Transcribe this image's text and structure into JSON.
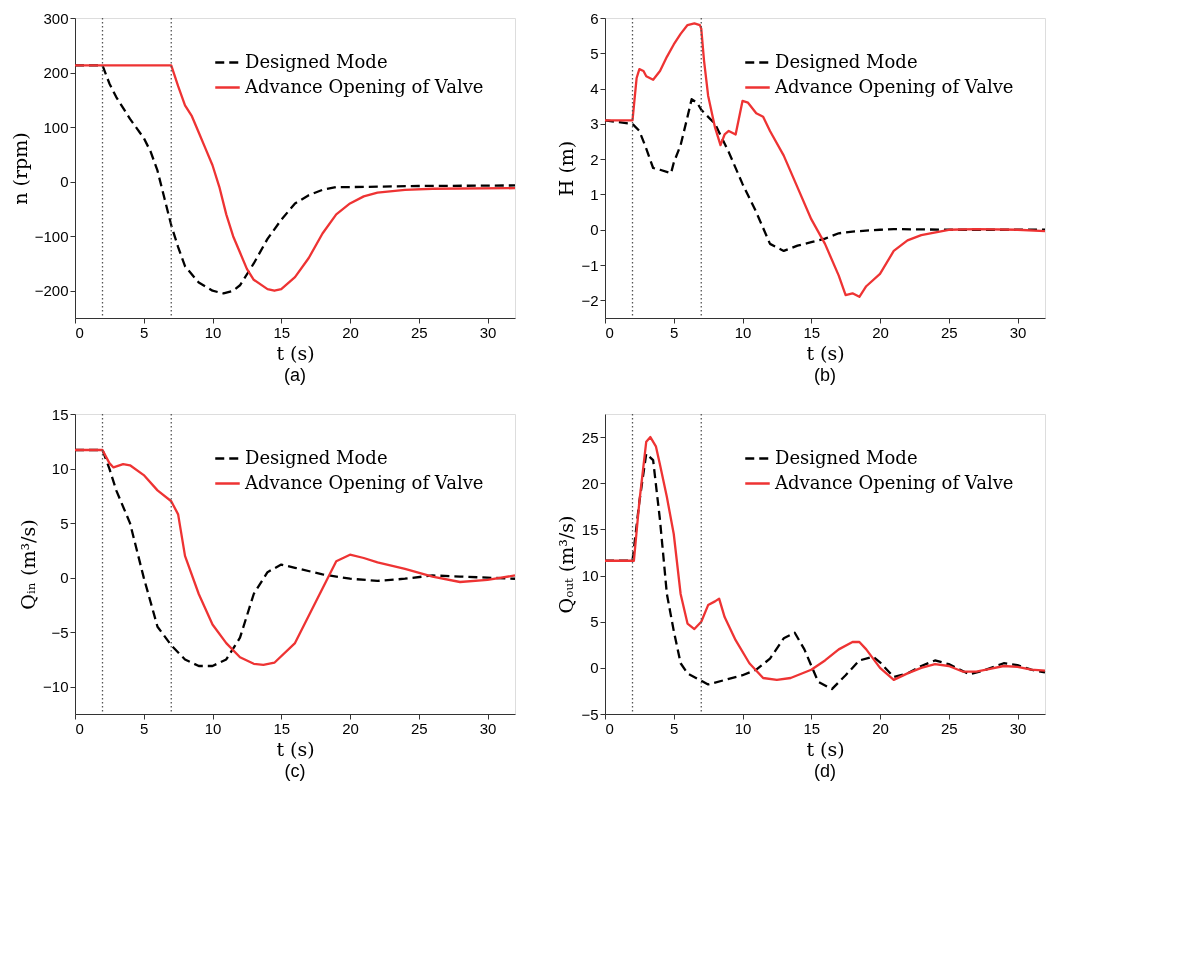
{
  "chart_data": [
    {
      "type": "line",
      "xlabel": "t (s)",
      "ylabel": "n (rpm)",
      "annotations": [
        "(a)"
      ],
      "xlim": [
        0,
        32
      ],
      "xticks": [
        0,
        5,
        10,
        15,
        20,
        25,
        30
      ],
      "ylim": [
        -250,
        300
      ],
      "yticks": [
        -200,
        -100,
        0,
        100,
        200,
        300
      ],
      "grid": false,
      "legend": "top right",
      "marker": "none",
      "ref_lines": [
        {
          "axis": "x",
          "value": 2,
          "line_style": "dotted",
          "color": "#555555"
        },
        {
          "axis": "x",
          "value": 7,
          "line_style": "dotted",
          "color": "#555555"
        }
      ],
      "series": [
        {
          "name": "Designed Mode",
          "color": "#000000",
          "line_style": "dashed",
          "x": [
            0,
            2,
            2.5,
            3,
            4,
            5,
            5.5,
            6,
            6.5,
            7,
            7.5,
            8,
            9,
            10,
            10.8,
            11.5,
            12,
            13,
            14,
            15,
            16,
            17,
            18,
            19,
            20,
            25,
            32
          ],
          "values": [
            213,
            213,
            180,
            155,
            115,
            80,
            55,
            20,
            -30,
            -80,
            -120,
            -155,
            -185,
            -200,
            -205,
            -200,
            -190,
            -150,
            -105,
            -70,
            -40,
            -25,
            -15,
            -10,
            -10,
            -8,
            -7
          ]
        },
        {
          "name": "Advance Opening of Valve",
          "color": "#ee3333",
          "line_style": "solid",
          "x": [
            0,
            7,
            7.5,
            8,
            8.5,
            9,
            9.5,
            10,
            10.5,
            11,
            11.5,
            12,
            12.5,
            13,
            14,
            14.5,
            15,
            16,
            17,
            18,
            19,
            20,
            21,
            22,
            24,
            26,
            32
          ],
          "values": [
            213,
            213,
            175,
            140,
            120,
            90,
            60,
            30,
            -10,
            -60,
            -100,
            -130,
            -160,
            -180,
            -197,
            -200,
            -197,
            -175,
            -140,
            -95,
            -60,
            -40,
            -27,
            -20,
            -15,
            -13,
            -12
          ]
        }
      ]
    },
    {
      "type": "line",
      "xlabel": "t (s)",
      "ylabel": "H (m)",
      "annotations": [
        "(b)"
      ],
      "xlim": [
        0,
        32
      ],
      "xticks": [
        0,
        5,
        10,
        15,
        20,
        25,
        30
      ],
      "ylim": [
        -2.5,
        6
      ],
      "yticks": [
        -2,
        -1,
        0,
        1,
        2,
        3,
        4,
        5,
        6
      ],
      "grid": false,
      "legend": "top right",
      "marker": "none",
      "ref_lines": [
        {
          "axis": "x",
          "value": 2,
          "line_style": "dotted",
          "color": "#555555"
        },
        {
          "axis": "x",
          "value": 7,
          "line_style": "dotted",
          "color": "#555555"
        }
      ],
      "series": [
        {
          "name": "Designed Mode",
          "color": "#000000",
          "line_style": "dashed",
          "x": [
            0,
            2,
            2.5,
            3,
            3.5,
            4,
            4.8,
            5,
            5.5,
            6,
            6.3,
            6.7,
            7,
            8,
            9,
            10,
            11,
            12,
            12.5,
            13,
            14,
            15,
            16,
            17,
            18,
            20,
            21,
            25,
            32
          ],
          "values": [
            3.1,
            3.0,
            2.8,
            2.3,
            1.75,
            1.7,
            1.6,
            1.9,
            2.4,
            3.2,
            3.7,
            3.6,
            3.4,
            3.0,
            2.2,
            1.3,
            0.5,
            -0.4,
            -0.5,
            -0.6,
            -0.45,
            -0.35,
            -0.25,
            -0.1,
            -0.05,
            0,
            0.02,
            0,
            0
          ]
        },
        {
          "name": "Advance Opening of Valve",
          "color": "#ee3333",
          "line_style": "solid",
          "x": [
            0,
            2,
            2.1,
            2.3,
            2.5,
            2.8,
            3,
            3.5,
            4,
            4.5,
            5,
            5.5,
            6,
            6.5,
            6.9,
            7,
            7.2,
            7.5,
            8,
            8.4,
            8.7,
            9,
            9.5,
            10,
            10.4,
            11,
            11.5,
            12,
            13,
            14,
            15,
            16,
            17,
            17.5,
            18,
            18.5,
            19,
            20,
            21,
            22,
            23,
            25,
            27,
            30,
            32
          ],
          "values": [
            3.1,
            3.1,
            3.5,
            4.3,
            4.55,
            4.5,
            4.35,
            4.25,
            4.5,
            4.9,
            5.25,
            5.55,
            5.8,
            5.85,
            5.8,
            5.7,
            4.8,
            3.8,
            2.9,
            2.4,
            2.7,
            2.8,
            2.7,
            3.65,
            3.6,
            3.3,
            3.2,
            2.8,
            2.1,
            1.2,
            0.3,
            -0.4,
            -1.3,
            -1.85,
            -1.8,
            -1.9,
            -1.6,
            -1.25,
            -0.6,
            -0.3,
            -0.15,
            0,
            0.02,
            0,
            -0.04
          ]
        }
      ]
    },
    {
      "type": "line",
      "xlabel": "t (s)",
      "ylabel": "Qᵢₙ (m³/s)",
      "annotations": [
        "(c)"
      ],
      "xlim": [
        0,
        32
      ],
      "xticks": [
        0,
        5,
        10,
        15,
        20,
        25,
        30
      ],
      "ylim": [
        -12.5,
        15
      ],
      "yticks": [
        -10,
        -5,
        0,
        5,
        10,
        15
      ],
      "grid": false,
      "legend": "top right",
      "marker": "none",
      "ref_lines": [
        {
          "axis": "x",
          "value": 2,
          "line_style": "dotted",
          "color": "#555555"
        },
        {
          "axis": "x",
          "value": 7,
          "line_style": "dotted",
          "color": "#555555"
        }
      ],
      "series": [
        {
          "name": "Designed Mode",
          "color": "#000000",
          "line_style": "dashed",
          "x": [
            0,
            2,
            2.5,
            3,
            4,
            5,
            6,
            7,
            8,
            9,
            10,
            11,
            12,
            13,
            14,
            15,
            16,
            18,
            20,
            22,
            24,
            26,
            28,
            30,
            32
          ],
          "values": [
            11.7,
            11.7,
            10,
            8,
            5,
            0,
            -4.5,
            -6.2,
            -7.5,
            -8.1,
            -8.1,
            -7.5,
            -5.5,
            -1.5,
            0.5,
            1.2,
            0.9,
            0.3,
            -0.1,
            -0.3,
            -0.1,
            0.2,
            0.1,
            0,
            -0.1
          ]
        },
        {
          "name": "Advance Opening of Valve",
          "color": "#ee3333",
          "line_style": "solid",
          "x": [
            0,
            2,
            2.5,
            2.8,
            3.5,
            4,
            5,
            6,
            7,
            7.5,
            8,
            9,
            10,
            11,
            12,
            13,
            13.7,
            14.5,
            16,
            17,
            18,
            19,
            20,
            21,
            22,
            24,
            26,
            28,
            30,
            32
          ],
          "values": [
            11.7,
            11.7,
            10.5,
            10.1,
            10.4,
            10.3,
            9.4,
            8,
            7,
            5.8,
            2,
            -1.5,
            -4.3,
            -6,
            -7.3,
            -7.9,
            -8,
            -7.8,
            -6,
            -3.5,
            -1,
            1.5,
            2.1,
            1.8,
            1.4,
            0.8,
            0.1,
            -0.4,
            -0.2,
            0.2
          ]
        }
      ]
    },
    {
      "type": "line",
      "xlabel": "t (s)",
      "ylabel": "Qₒᵤₜ (m³/s)",
      "annotations": [
        "(d)"
      ],
      "xlim": [
        0,
        32
      ],
      "xticks": [
        0,
        5,
        10,
        15,
        20,
        25,
        30
      ],
      "ylim": [
        -5,
        27.5
      ],
      "yticks": [
        -5,
        0,
        5,
        10,
        15,
        20,
        25
      ],
      "grid": false,
      "legend": "top right",
      "marker": "none",
      "ref_lines": [
        {
          "axis": "x",
          "value": 2,
          "line_style": "dotted",
          "color": "#555555"
        },
        {
          "axis": "x",
          "value": 7,
          "line_style": "dotted",
          "color": "#555555"
        }
      ],
      "series": [
        {
          "name": "Designed Mode",
          "color": "#000000",
          "line_style": "dashed",
          "x": [
            0,
            2,
            2.5,
            3,
            3.5,
            4,
            4.5,
            5,
            5.5,
            6,
            7,
            7.5,
            9,
            10,
            11,
            12,
            13,
            13.8,
            14.5,
            15.5,
            16.5,
            17.5,
            18.5,
            19.5,
            20,
            21,
            22,
            23,
            24,
            25,
            26.5,
            27.5,
            29,
            30,
            31,
            32
          ],
          "values": [
            11.6,
            11.6,
            18,
            23.2,
            22.5,
            16,
            8,
            4,
            0.5,
            -0.6,
            -1.4,
            -1.8,
            -1.2,
            -0.8,
            -0.2,
            1,
            3.2,
            3.8,
            2,
            -1.5,
            -2.3,
            -0.8,
            0.8,
            1.2,
            0.6,
            -1,
            -0.6,
            0.2,
            0.8,
            0.4,
            -0.7,
            -0.3,
            0.5,
            0.3,
            -0.2,
            -0.5
          ]
        },
        {
          "name": "Advance Opening of Valve",
          "color": "#ee3333",
          "line_style": "solid",
          "x": [
            0,
            2.1,
            2.5,
            3,
            3.3,
            3.7,
            4,
            4.5,
            5,
            5.5,
            6,
            6.5,
            7,
            7.5,
            8,
            8.3,
            8.7,
            9.5,
            10.5,
            11.5,
            12.5,
            13.5,
            15,
            16,
            17,
            18,
            18.5,
            19,
            20,
            21,
            22,
            23,
            24,
            25,
            26,
            27,
            28,
            29,
            30,
            31,
            32
          ],
          "values": [
            11.6,
            11.6,
            18,
            24.5,
            25,
            24,
            22,
            18.5,
            14.5,
            8,
            4.8,
            4.2,
            5,
            6.8,
            7.2,
            7.5,
            5.5,
            3,
            0.5,
            -1.1,
            -1.3,
            -1.1,
            -0.2,
            0.8,
            2,
            2.8,
            2.8,
            2,
            0,
            -1.3,
            -0.6,
            0,
            0.4,
            0.2,
            -0.4,
            -0.4,
            -0.1,
            0.2,
            0.1,
            -0.2,
            -0.3
          ]
        }
      ]
    }
  ]
}
